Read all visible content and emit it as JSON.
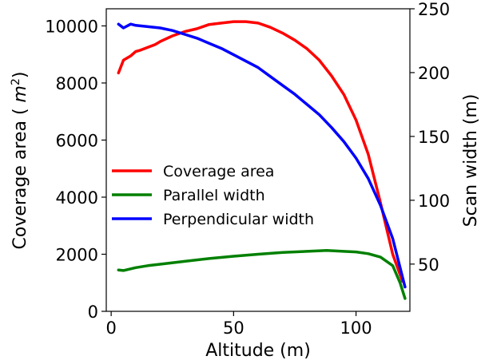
{
  "chart_data": {
    "type": "line",
    "xlabel": "Altitude (m)",
    "ylabel_left": "Coverage area ( m2)",
    "ylabel_left_base": "Coverage area ( ",
    "ylabel_left_unit": "m",
    "ylabel_left_exp": "2",
    "ylabel_left_close": ")",
    "ylabel_right": "Scan width (m)",
    "xlim": [
      -2,
      122
    ],
    "ylim_left": [
      0,
      10600
    ],
    "ylim_right": [
      13,
      250
    ],
    "x_ticks": [
      0,
      50,
      100
    ],
    "x_tick_labels": [
      "0",
      "50",
      "100"
    ],
    "y_left_ticks": [
      0,
      2000,
      4000,
      6000,
      8000,
      10000
    ],
    "y_left_tick_labels": [
      "0",
      "2000",
      "4000",
      "6000",
      "8000",
      "10000"
    ],
    "y_right_ticks": [
      50,
      100,
      150,
      200,
      250
    ],
    "y_right_tick_labels": [
      "50",
      "100",
      "150",
      "200",
      "250"
    ],
    "grid": false,
    "legend_position": "center-left",
    "series": [
      {
        "name": "Coverage area",
        "axis": "left",
        "color": "#ff0000",
        "x": [
          3,
          5,
          8,
          10,
          12,
          15,
          18,
          20,
          25,
          30,
          35,
          40,
          45,
          50,
          55,
          60,
          65,
          70,
          75,
          80,
          85,
          90,
          95,
          100,
          105,
          110,
          115,
          119
        ],
        "y": [
          8350,
          8800,
          8950,
          9100,
          9150,
          9250,
          9350,
          9450,
          9650,
          9800,
          9900,
          10050,
          10100,
          10150,
          10150,
          10100,
          9950,
          9750,
          9500,
          9200,
          8800,
          8250,
          7600,
          6700,
          5500,
          3800,
          2000,
          1050
        ]
      },
      {
        "name": "Parallel width",
        "axis": "left",
        "color": "#008000",
        "x": [
          3,
          5,
          10,
          15,
          20,
          30,
          40,
          50,
          60,
          70,
          80,
          88,
          95,
          100,
          105,
          110,
          115,
          118,
          120
        ],
        "y": [
          1450,
          1430,
          1530,
          1600,
          1650,
          1750,
          1850,
          1930,
          2000,
          2060,
          2100,
          2130,
          2100,
          2080,
          2020,
          1900,
          1600,
          1000,
          450
        ]
      },
      {
        "name": "Perpendicular width",
        "axis": "right",
        "color": "#0000ff",
        "x": [
          3,
          5,
          8,
          10,
          15,
          20,
          25,
          30,
          35,
          40,
          45,
          50,
          55,
          60,
          65,
          70,
          75,
          80,
          85,
          90,
          95,
          100,
          105,
          110,
          115,
          120
        ],
        "y": [
          238,
          235,
          238,
          237,
          236,
          235,
          233,
          230,
          227,
          223,
          219,
          214,
          209,
          204,
          197,
          190,
          183,
          175,
          167,
          157,
          146,
          133,
          117,
          96,
          70,
          32
        ]
      }
    ]
  }
}
